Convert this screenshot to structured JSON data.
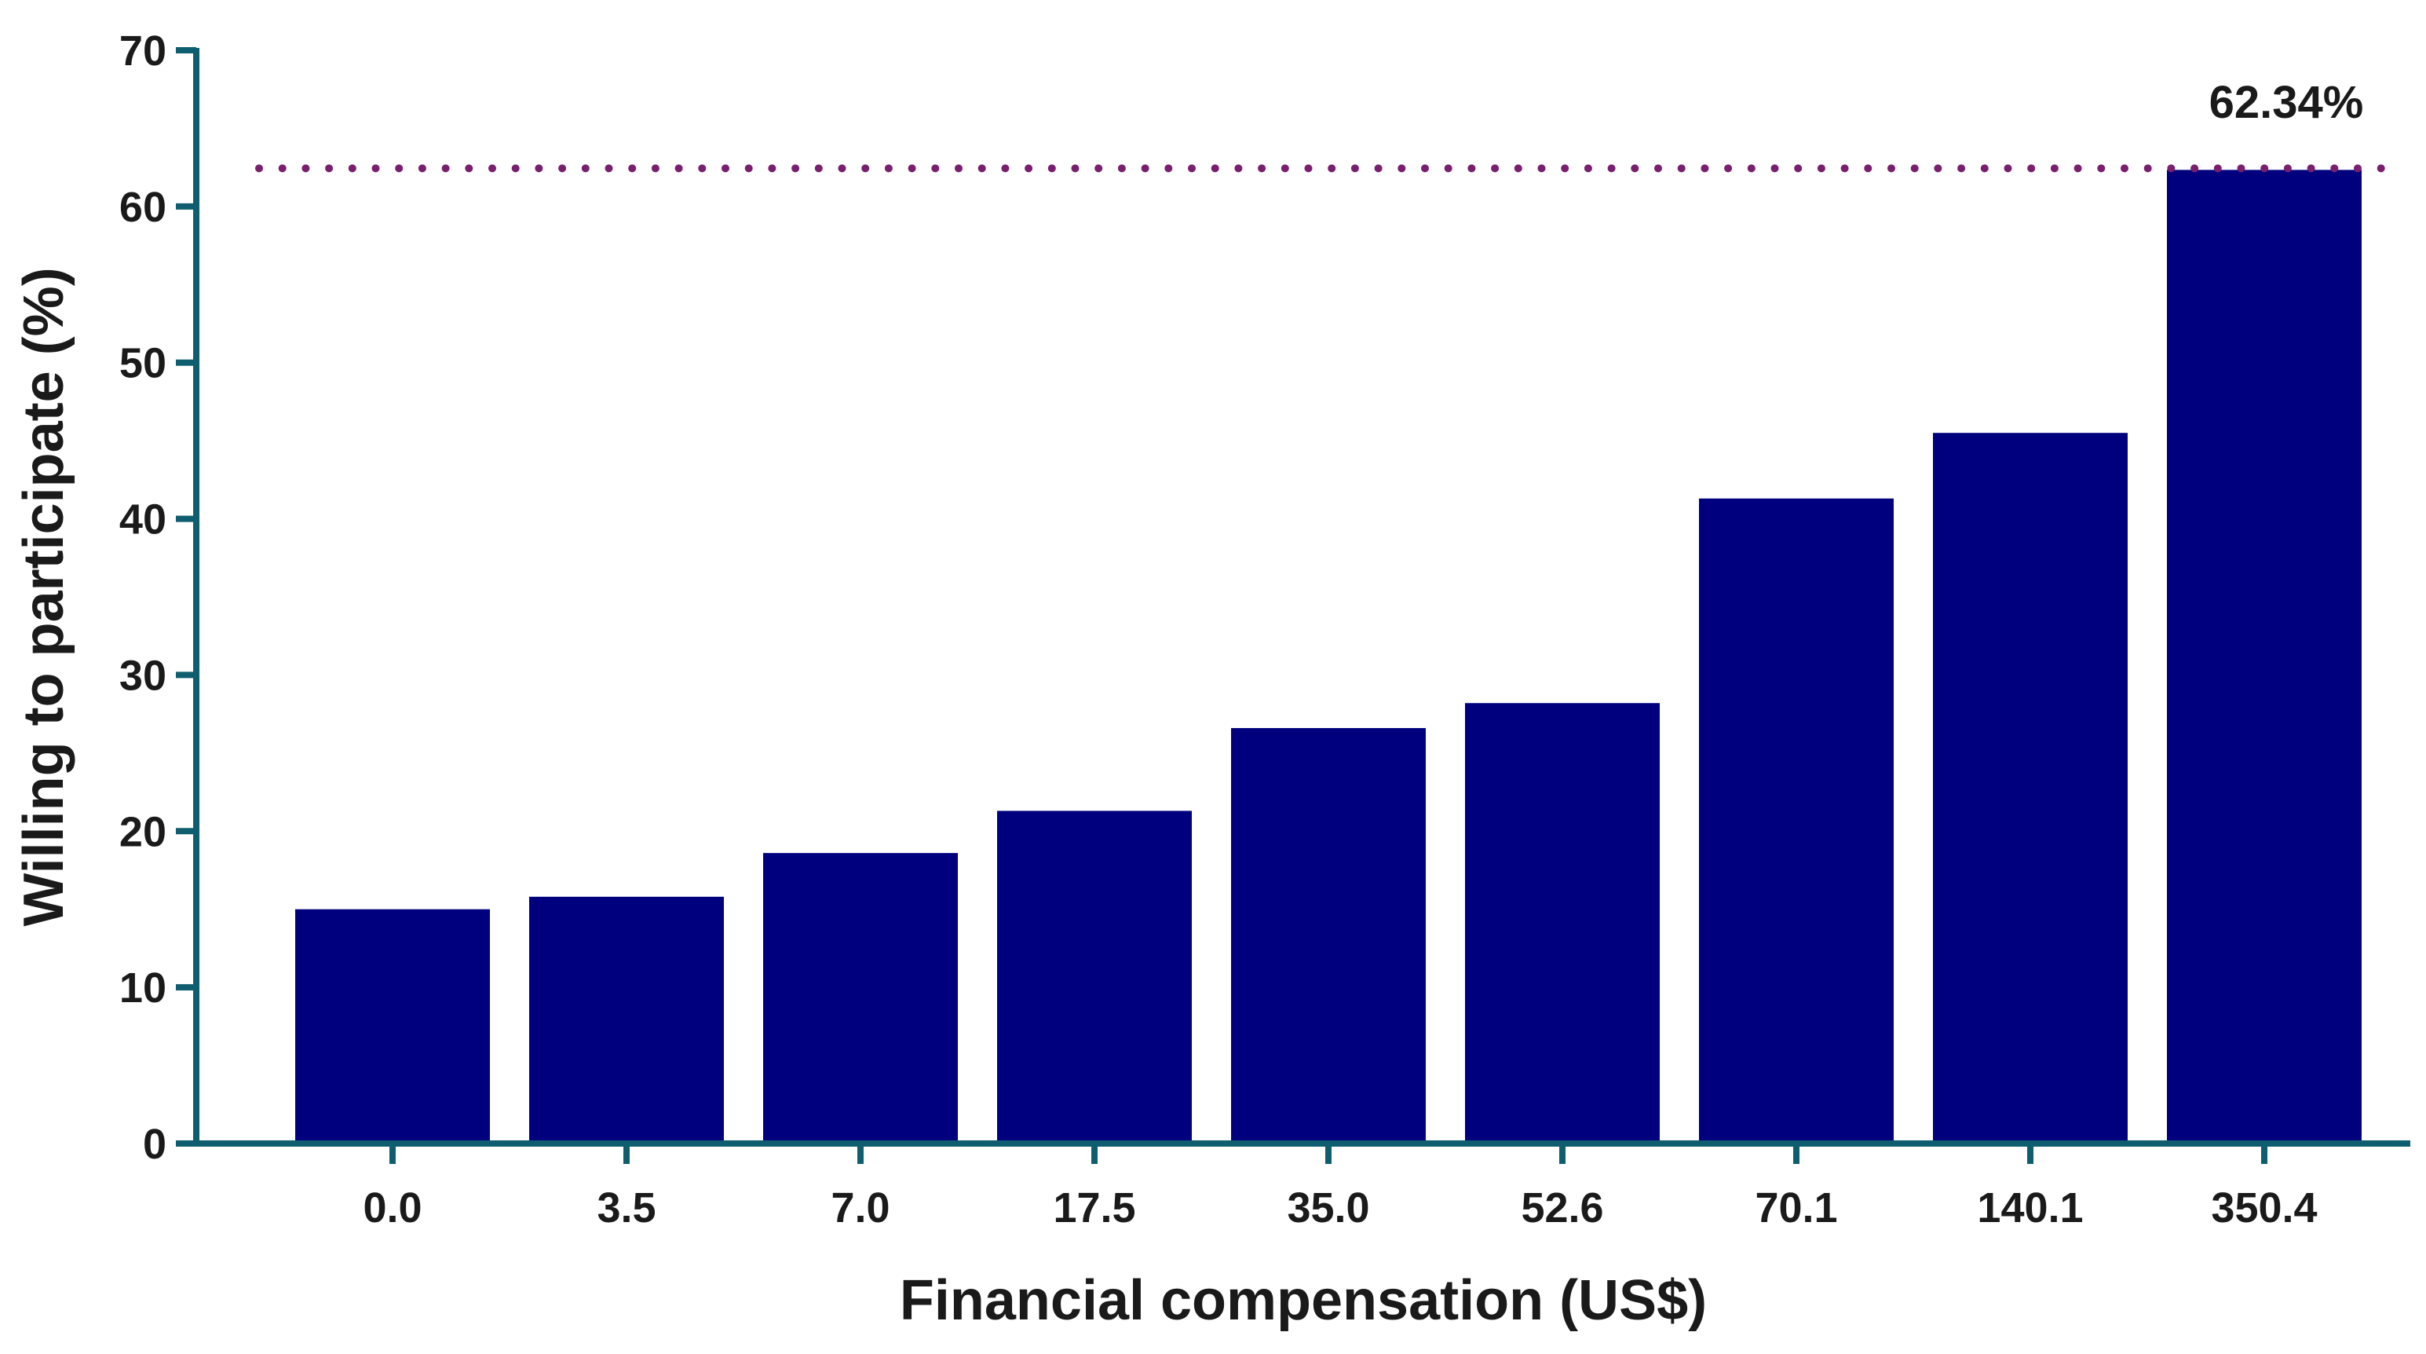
{
  "chart_data": {
    "type": "bar",
    "xlabel": "Financial compensation (US$)",
    "ylabel": "Willing to participate (%)",
    "categories": [
      "0.0",
      "3.5",
      "7.0",
      "17.5",
      "35.0",
      "52.6",
      "70.1",
      "140.1",
      "350.4"
    ],
    "values": [
      15.0,
      15.8,
      18.6,
      21.3,
      26.6,
      28.2,
      41.3,
      45.5,
      62.34
    ],
    "ylim": [
      0,
      70
    ],
    "yticks": [
      0,
      10,
      20,
      30,
      40,
      50,
      60,
      70
    ],
    "reference_line": {
      "value": 62.34,
      "style": "dotted",
      "color": "#7a1f6e"
    },
    "annotations": [
      {
        "text": "62.34%",
        "category": "350.4"
      }
    ],
    "grid": false,
    "legend": "none",
    "colors": {
      "bar": "#00007f",
      "axis": "#0e5e6f",
      "reference_line": "#7a1f6e"
    }
  }
}
